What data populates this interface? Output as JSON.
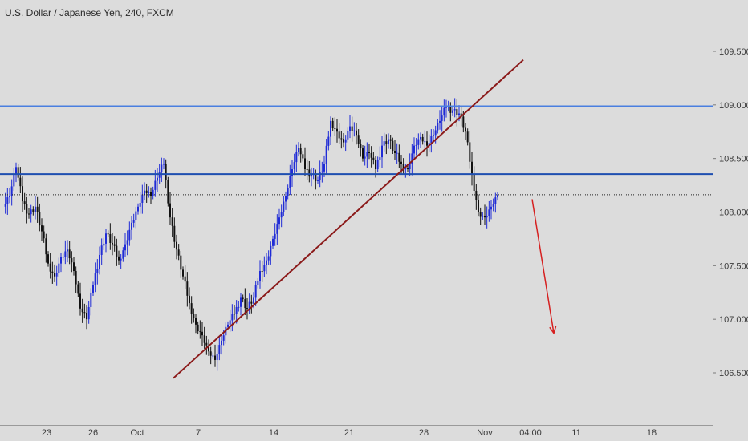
{
  "header": {
    "title": "U.S. Dollar / Japanese Yen, 240, FXCM"
  },
  "colors": {
    "background": "#dcdcdc",
    "up_candle": "#1f2bd6",
    "down_candle": "#111111",
    "level_line": "#4a7fe0",
    "level_line_strong": "#1f4fb0",
    "trend_line": "#8b1a1a",
    "arrow": "#d62020",
    "last_price_tag": "#111111",
    "axis_text": "#3a3a3a"
  },
  "chart_data": {
    "type": "candlestick",
    "symbol": "U.S. Dollar / Japanese Yen",
    "interval": "240",
    "source": "FXCM",
    "y_axis": {
      "ticks": [
        "109.500",
        "109.000",
        "108.500",
        "108.000",
        "107.500",
        "107.000",
        "106.500"
      ],
      "range": [
        106.2,
        109.9
      ]
    },
    "x_axis": {
      "labels": [
        "23",
        "26",
        "Oct",
        "7",
        "14",
        "21",
        "28",
        "Nov",
        "04:00",
        "11",
        "18"
      ]
    },
    "horizontal_levels": [
      {
        "value": 108.989,
        "label": "108.989",
        "style": "light"
      },
      {
        "value": 108.354,
        "label": "108.354",
        "style": "strong"
      }
    ],
    "last_price": {
      "value": 108.162,
      "label": "108.162"
    },
    "trend_line": {
      "from": {
        "date": "Oct 4",
        "price": 106.45
      },
      "to": {
        "date": "Nov 5",
        "price": 109.42
      }
    },
    "projection_arrow": {
      "from": {
        "date": "Nov 4",
        "price": 108.12
      },
      "to": {
        "date": "Nov 7",
        "price": 106.87
      }
    },
    "price_path": [
      108.05,
      108.15,
      108.42,
      108.1,
      107.98,
      108.05,
      107.82,
      107.52,
      107.4,
      107.58,
      107.65,
      107.45,
      107.1,
      107.0,
      107.32,
      107.6,
      107.8,
      107.7,
      107.55,
      107.7,
      107.9,
      108.05,
      108.2,
      108.15,
      108.32,
      108.45,
      107.95,
      107.65,
      107.4,
      107.15,
      106.95,
      106.85,
      106.7,
      106.62,
      106.8,
      106.95,
      107.05,
      107.2,
      107.1,
      107.2,
      107.45,
      107.55,
      107.75,
      107.95,
      108.15,
      108.4,
      108.6,
      108.4,
      108.35,
      108.3,
      108.45,
      108.85,
      108.75,
      108.65,
      108.8,
      108.72,
      108.5,
      108.55,
      108.4,
      108.62,
      108.68,
      108.55,
      108.45,
      108.4,
      108.62,
      108.7,
      108.62,
      108.72,
      108.85,
      108.98,
      108.95,
      108.92,
      108.75,
      108.35,
      108.0,
      107.95,
      108.05,
      108.16
    ]
  }
}
